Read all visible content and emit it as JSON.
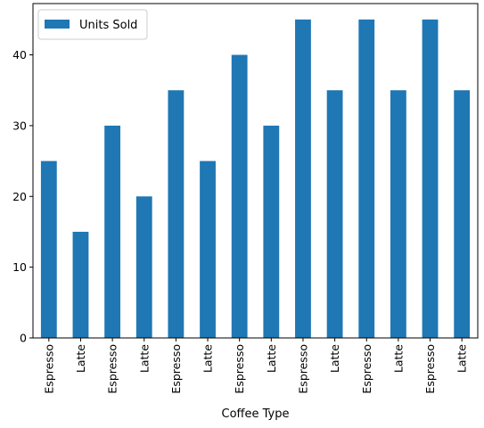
{
  "chart_data": {
    "type": "bar",
    "categories": [
      "Espresso",
      "Latte",
      "Espresso",
      "Latte",
      "Espresso",
      "Latte",
      "Espresso",
      "Latte",
      "Espresso",
      "Latte",
      "Espresso",
      "Latte",
      "Espresso",
      "Latte"
    ],
    "series": [
      {
        "name": "Units Sold",
        "values": [
          25,
          15,
          30,
          20,
          35,
          25,
          40,
          30,
          45,
          35,
          45,
          35,
          45,
          35
        ],
        "color": "#1f77b4"
      }
    ],
    "title": "",
    "xlabel": "Coffee Type",
    "ylabel": "",
    "ylim": [
      0,
      47.25
    ],
    "yticks": [
      0,
      10,
      20,
      30,
      40
    ],
    "grid": false,
    "legend": {
      "position": "top-left"
    }
  }
}
